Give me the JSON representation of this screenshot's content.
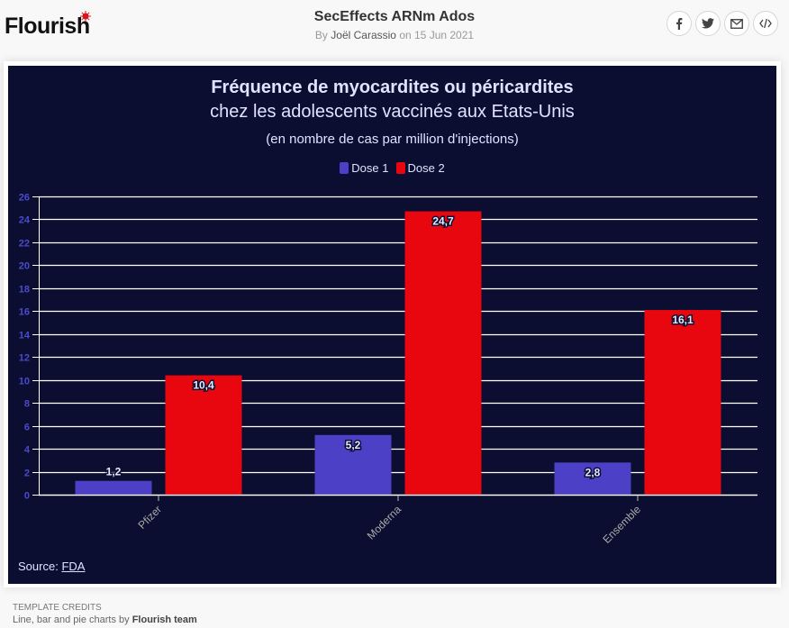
{
  "header": {
    "logo_text": "Flourish",
    "title": "SecEffects ARNm Ados",
    "byline_prefix": "By",
    "author": "Joël Carassio",
    "byline_date": "on 15 Jun 2021",
    "share_buttons": [
      "facebook-icon",
      "twitter-icon",
      "email-icon",
      "embed-code-icon"
    ]
  },
  "colors": {
    "panel": "#0b0e30",
    "dose1": "#4b40c6",
    "dose2": "#e8060f",
    "axis_text": "#4b4acb",
    "text": "#e0e3ff"
  },
  "chart_data": {
    "type": "bar",
    "title": "Fréquence de myocardites ou péricardites",
    "title_line2": "chez les adolescents vaccinés aux Etats-Unis",
    "subtitle": "(en nombre de cas par million d'injections)",
    "categories": [
      "Pfizer",
      "Moderna",
      "Ensemble"
    ],
    "series": [
      {
        "name": "Dose 1",
        "values": [
          1.2,
          5.2,
          2.8
        ],
        "labels": [
          "1,2",
          "5,2",
          "2,8"
        ]
      },
      {
        "name": "Dose 2",
        "values": [
          10.4,
          24.7,
          16.1
        ],
        "labels": [
          "10,4",
          "24,7",
          "16,1"
        ]
      }
    ],
    "xlabel": "",
    "ylabel": "",
    "ylim": [
      0,
      26
    ],
    "yticks": [
      0,
      2,
      4,
      6,
      8,
      10,
      12,
      14,
      16,
      18,
      20,
      22,
      24,
      26
    ],
    "grid": true,
    "legend_position": "top-center"
  },
  "footer": {
    "source_label": "Source:",
    "source_link": "FDA",
    "credits_heading": "TEMPLATE CREDITS",
    "credits_text": "Line, bar and pie charts by",
    "credits_author": "Flourish team"
  }
}
